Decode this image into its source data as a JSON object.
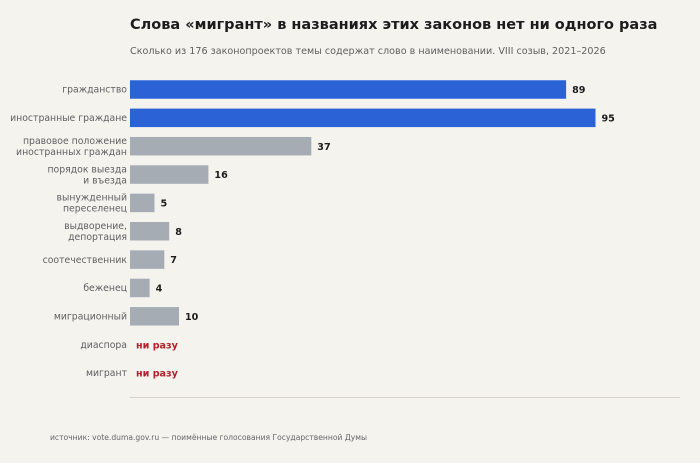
{
  "header": {
    "title": "Слова «мигрант» в названиях этих законов нет ни одного раза",
    "subtitle": "Сколько из 176 законопроектов темы содержат слово в наименовании. VIII созыв, 2021–2026"
  },
  "footer": {
    "source": "источник: vote.duma.gov.ru — поимённые голосования Государственной Думы"
  },
  "colors": {
    "highlight": "#2b63d6",
    "regular": "#a6acb4",
    "zero_label": "#b3202b",
    "axis_line": "#d6d3cc",
    "category_text": "#5f5f5f",
    "value_text": "#1c1c1c"
  },
  "chart_data": {
    "type": "bar",
    "orientation": "horizontal",
    "categories": [
      [
        "гражданство"
      ],
      [
        "иностранные граждане"
      ],
      [
        "правовое положение",
        "иностранных граждан"
      ],
      [
        "порядок выезда",
        "и въезда"
      ],
      [
        "вынужденный",
        "переселенец"
      ],
      [
        "выдворение,",
        "депортация"
      ],
      [
        "соотечественник"
      ],
      [
        "беженец"
      ],
      [
        "миграционный"
      ],
      [
        "диаспора"
      ],
      [
        "мигрант"
      ]
    ],
    "values": [
      89,
      95,
      37,
      16,
      5,
      8,
      7,
      4,
      10,
      0,
      0
    ],
    "value_labels": [
      "89",
      "95",
      "37",
      "16",
      "5",
      "8",
      "7",
      "4",
      "10",
      "ни разу",
      "ни разу"
    ],
    "highlighted": [
      true,
      true,
      false,
      false,
      false,
      false,
      false,
      false,
      false,
      false,
      false
    ],
    "xlim": [
      0,
      100
    ],
    "grid": false,
    "legend": "none"
  }
}
